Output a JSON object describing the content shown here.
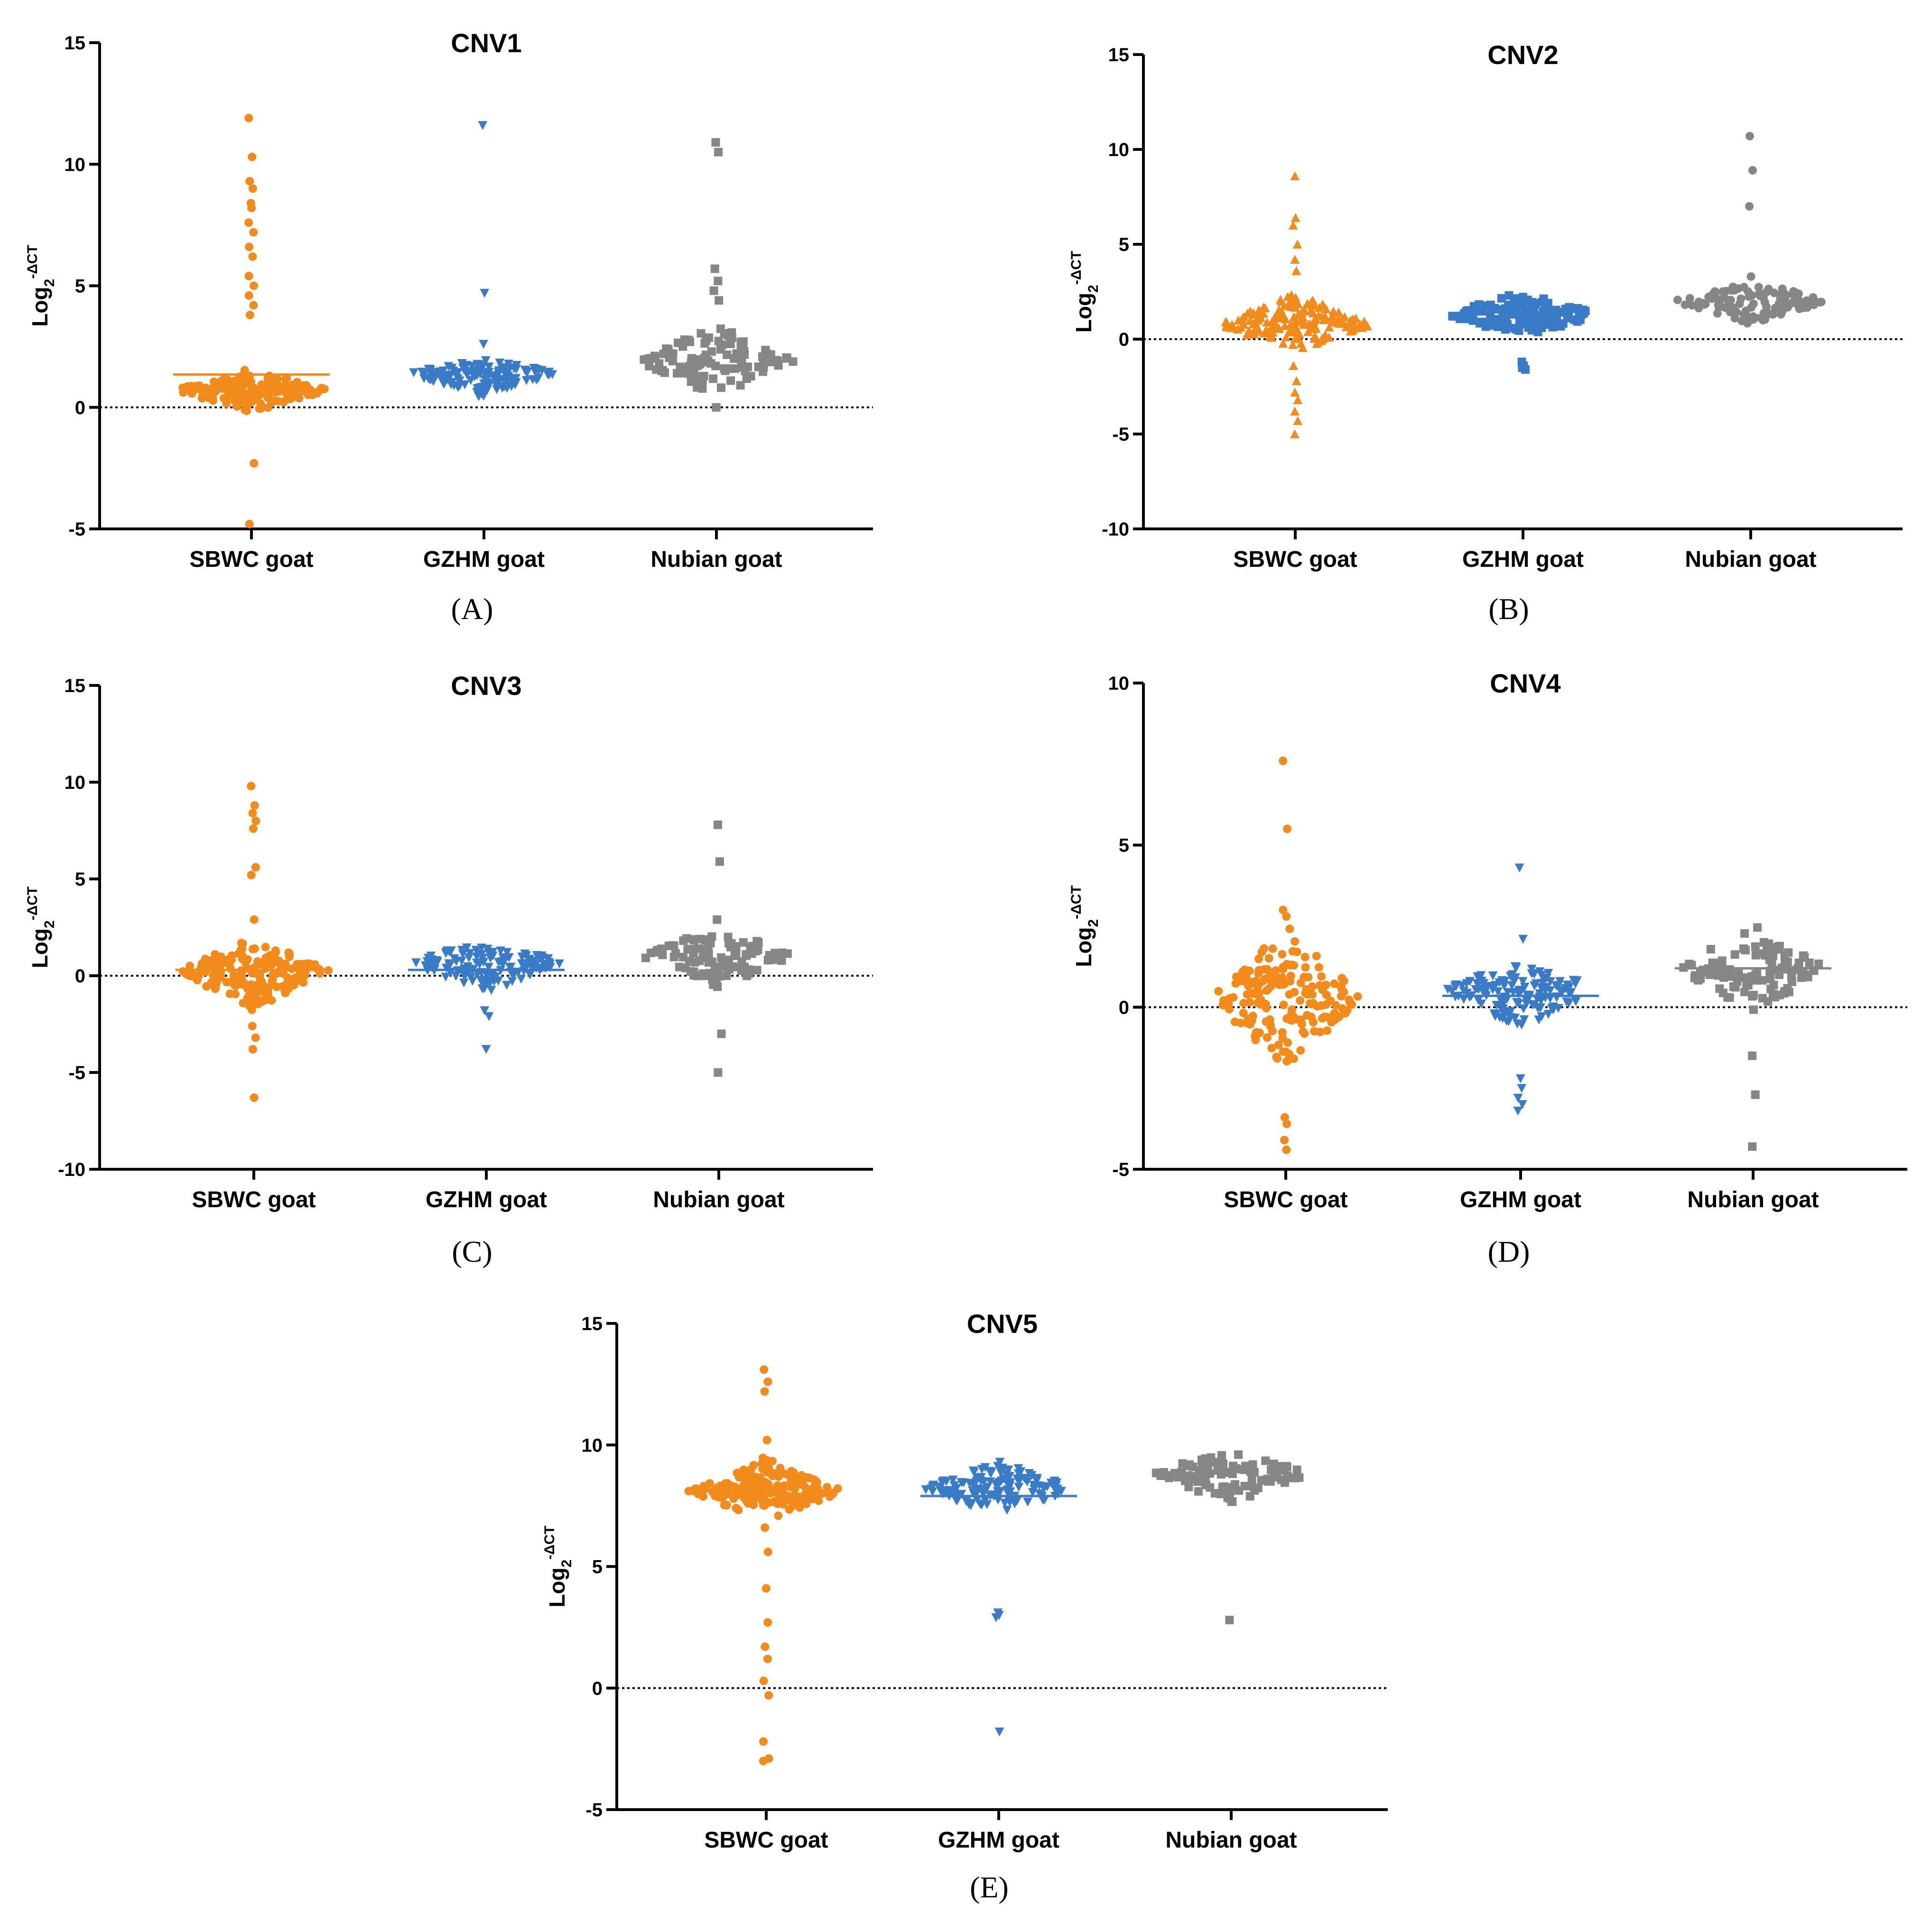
{
  "colors": {
    "SBWC goat": "#f28a1c",
    "GZHM goat": "#3a7bc8",
    "Nubian goat": "#868686"
  },
  "chart_data": [
    {
      "type": "scatter",
      "panel": "(A)",
      "title": "CNV1",
      "ylabel": "Log2-ΔCT",
      "ylabel_base": "Log",
      "ylabel_sub": "2",
      "ylabel_sup": "-ΔCT",
      "categories": [
        "SBWC goat",
        "GZHM goat",
        "Nubian goat"
      ],
      "ylim": [
        -5,
        15
      ],
      "yticks": [
        -5,
        0,
        5,
        10,
        15
      ],
      "reference_line": 0,
      "medians": [
        1.35,
        null,
        null
      ],
      "series": [
        {
          "name": "SBWC goat",
          "marker": "circle",
          "outliers": [
            11.9,
            10.3,
            9.3,
            9.0,
            8.4,
            8.2,
            7.6,
            7.2,
            6.6,
            6.2,
            5.4,
            5.0,
            4.6,
            4.2,
            3.8,
            -2.3,
            -4.8
          ],
          "core": {
            "center": 0.7,
            "low": -0.4,
            "high": 1.6,
            "n": 170
          }
        },
        {
          "name": "GZHM goat",
          "marker": "triangle-down",
          "outliers": [
            11.6,
            4.7,
            2.6
          ],
          "core": {
            "center": 1.35,
            "low": 0.3,
            "high": 2.1,
            "n": 150
          }
        },
        {
          "name": "Nubian goat",
          "marker": "square",
          "outliers": [
            10.9,
            10.5,
            5.7,
            5.2,
            4.8,
            4.4,
            0.0
          ],
          "core": {
            "center": 1.9,
            "low": 0.3,
            "high": 3.6,
            "n": 110
          }
        }
      ]
    },
    {
      "type": "scatter",
      "panel": "(B)",
      "title": "CNV2",
      "ylabel": "Log2-ΔCT",
      "ylabel_base": "Log",
      "ylabel_sub": "2",
      "ylabel_sup": "-ΔCT",
      "categories": [
        "SBWC goat",
        "GZHM goat",
        "Nubian goat"
      ],
      "ylim": [
        -10,
        15
      ],
      "yticks": [
        -10,
        -5,
        0,
        5,
        10,
        15
      ],
      "reference_line": 0,
      "medians": [
        null,
        null,
        null
      ],
      "series": [
        {
          "name": "SBWC goat",
          "marker": "triangle-up",
          "outliers": [
            8.6,
            6.4,
            6.0,
            5.0,
            4.2,
            3.6,
            -1.4,
            -2.2,
            -2.8,
            -3.2,
            -3.8,
            -4.3,
            -5.0
          ],
          "core": {
            "center": 0.8,
            "low": -0.7,
            "high": 2.8,
            "n": 180
          }
        },
        {
          "name": "GZHM goat",
          "marker": "square",
          "outliers": [
            -1.2,
            -1.4,
            -1.5,
            -1.6
          ],
          "core": {
            "center": 1.3,
            "low": -0.2,
            "high": 2.5,
            "n": 150
          }
        },
        {
          "name": "Nubian goat",
          "marker": "circle",
          "outliers": [
            10.7,
            8.9,
            7.0,
            3.3
          ],
          "core": {
            "center": 2.0,
            "low": 0.4,
            "high": 3.1,
            "n": 110
          }
        }
      ]
    },
    {
      "type": "scatter",
      "panel": "(C)",
      "title": "CNV3",
      "ylabel": "Log2-ΔCT",
      "ylabel_base": "Log",
      "ylabel_sub": "2",
      "ylabel_sup": "-ΔCT",
      "categories": [
        "SBWC goat",
        "GZHM goat",
        "Nubian goat"
      ],
      "ylim": [
        -10,
        15
      ],
      "yticks": [
        -10,
        -5,
        0,
        5,
        10,
        15
      ],
      "reference_line": 0,
      "medians": [
        0.3,
        0.3,
        null
      ],
      "series": [
        {
          "name": "SBWC goat",
          "marker": "circle",
          "outliers": [
            9.8,
            8.8,
            8.4,
            8.0,
            7.6,
            5.6,
            5.2,
            2.9,
            -2.6,
            -3.2,
            -3.8,
            -6.3
          ],
          "core": {
            "center": 0.2,
            "low": -2.2,
            "high": 2.0,
            "n": 190
          }
        },
        {
          "name": "GZHM goat",
          "marker": "triangle-down",
          "outliers": [
            -1.8,
            -2.1,
            -3.8
          ],
          "core": {
            "center": 0.6,
            "low": -1.3,
            "high": 2.0,
            "n": 140
          }
        },
        {
          "name": "Nubian goat",
          "marker": "square",
          "outliers": [
            7.8,
            5.9,
            2.9,
            -3.0,
            -5.0
          ],
          "core": {
            "center": 1.0,
            "low": -1.1,
            "high": 2.4,
            "n": 110
          }
        }
      ]
    },
    {
      "type": "scatter",
      "panel": "(D)",
      "title": "CNV4",
      "ylabel": "Log2-ΔCT",
      "ylabel_base": "Log",
      "ylabel_sub": "2",
      "ylabel_sup": "-ΔCT",
      "categories": [
        "SBWC goat",
        "GZHM goat",
        "Nubian goat"
      ],
      "ylim": [
        -5,
        10
      ],
      "yticks": [
        -5,
        0,
        5,
        10
      ],
      "reference_line": 0,
      "medians": [
        null,
        0.35,
        1.2
      ],
      "series": [
        {
          "name": "SBWC goat",
          "marker": "circle",
          "outliers": [
            7.6,
            5.5,
            3.0,
            2.8,
            -3.4,
            -3.6,
            -4.1,
            -4.4
          ],
          "core": {
            "center": 0.3,
            "low": -2.2,
            "high": 2.6,
            "n": 180
          }
        },
        {
          "name": "GZHM goat",
          "marker": "triangle-down",
          "outliers": [
            4.3,
            2.1,
            -2.2,
            -2.5,
            -2.8,
            -3.0,
            -3.2
          ],
          "core": {
            "center": 0.5,
            "low": -1.1,
            "high": 1.5,
            "n": 150
          }
        },
        {
          "name": "Nubian goat",
          "marker": "square",
          "outliers": [
            -1.5,
            -2.7,
            -4.3
          ],
          "core": {
            "center": 1.2,
            "low": -0.4,
            "high": 2.6,
            "n": 110
          }
        }
      ]
    },
    {
      "type": "scatter",
      "panel": "(E)",
      "title": "CNV5",
      "ylabel": "Log2-ΔCT",
      "ylabel_base": "Log",
      "ylabel_sub": "2",
      "ylabel_sup": "-ΔCT",
      "categories": [
        "SBWC goat",
        "GZHM goat",
        "Nubian goat"
      ],
      "ylim": [
        -5,
        15
      ],
      "yticks": [
        -5,
        0,
        5,
        10,
        15
      ],
      "reference_line": 0,
      "medians": [
        null,
        7.9,
        null
      ],
      "series": [
        {
          "name": "SBWC goat",
          "marker": "circle",
          "outliers": [
            13.1,
            12.6,
            12.2,
            10.2,
            6.6,
            5.6,
            4.1,
            2.7,
            1.7,
            1.2,
            0.3,
            -0.3,
            -2.2,
            -2.9,
            -3.0
          ],
          "core": {
            "center": 8.1,
            "low": 7.0,
            "high": 9.8,
            "n": 200
          }
        },
        {
          "name": "GZHM goat",
          "marker": "triangle-down",
          "outliers": [
            3.1,
            3.0,
            2.9,
            -1.8
          ],
          "core": {
            "center": 8.2,
            "low": 7.1,
            "high": 9.6,
            "n": 140
          }
        },
        {
          "name": "Nubian goat",
          "marker": "square",
          "outliers": [
            2.8
          ],
          "core": {
            "center": 8.8,
            "low": 7.2,
            "high": 9.9,
            "n": 110
          }
        }
      ]
    }
  ]
}
